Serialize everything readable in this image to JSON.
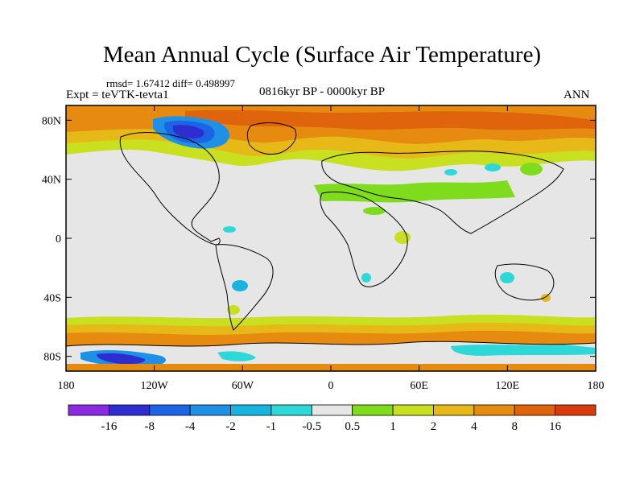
{
  "header": {
    "title": "Mean Annual Cycle (Surface Air Temperature)",
    "stats": "rmsd= 1.67412 diff= 0.498997",
    "experiment": "Expt = teVTK-tevta1",
    "period": "0816kyr BP - 0000kyr BP",
    "season": "ANN"
  },
  "map": {
    "lat_labels": [
      "80N",
      "40N",
      "0",
      "40S",
      "80S"
    ],
    "lat_values": [
      80,
      40,
      0,
      -40,
      -80
    ],
    "lon_labels": [
      "180",
      "120W",
      "60W",
      "0",
      "60E",
      "120E",
      "180"
    ],
    "lon_values": [
      -180,
      -120,
      -60,
      0,
      60,
      120,
      180
    ],
    "lat_range": [
      -90,
      90
    ],
    "lon_range": [
      -180,
      180
    ],
    "colors": {
      "background": "#e6e6e6",
      "coastline": "#000000"
    }
  },
  "colorbar": {
    "colors": [
      "#8a2be2",
      "#2e2ed0",
      "#1c64e6",
      "#1e90e6",
      "#18b4e0",
      "#2ed8d8",
      "#e6e6e6",
      "#7fdc1c",
      "#c8e020",
      "#e6b818",
      "#e68a10",
      "#e0640c",
      "#d83a0c"
    ],
    "labels": [
      "-16",
      "-8",
      "-4",
      "-2",
      "-1",
      "-0.5",
      "0.5",
      "1",
      "2",
      "4",
      "8",
      "16"
    ]
  }
}
